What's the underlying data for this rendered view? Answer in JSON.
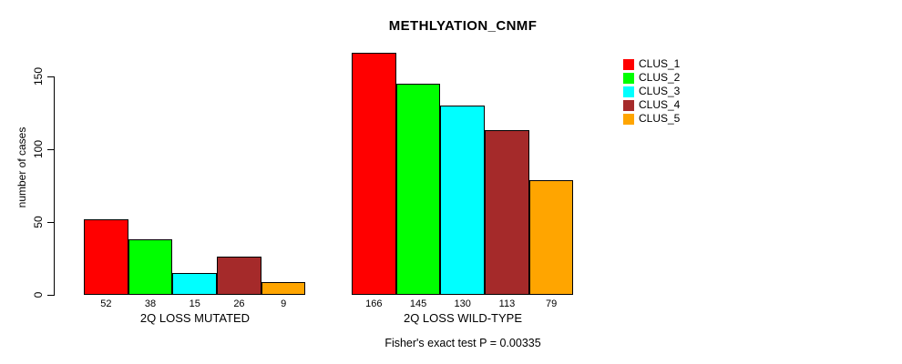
{
  "chart_data": {
    "type": "bar",
    "title": "METHLYATION_CNMF",
    "ylabel": "number of cases",
    "xlabel": "",
    "categories": [
      "2Q LOSS MUTATED",
      "2Q LOSS WILD-TYPE"
    ],
    "series": [
      {
        "name": "CLUS_1",
        "color": "#FF0000",
        "values": [
          52,
          166
        ]
      },
      {
        "name": "CLUS_2",
        "color": "#00FF00",
        "values": [
          38,
          145
        ]
      },
      {
        "name": "CLUS_3",
        "color": "#00FFFF",
        "values": [
          15,
          130
        ]
      },
      {
        "name": "CLUS_4",
        "color": "#A52A2A",
        "values": [
          26,
          113
        ]
      },
      {
        "name": "CLUS_5",
        "color": "#FFA500",
        "values": [
          9,
          79
        ]
      }
    ],
    "y_ticks": [
      0,
      50,
      100,
      150
    ],
    "ylim": [
      0,
      175
    ],
    "grid": false,
    "bar_value_labels_shown": true,
    "legend_position": "right",
    "annotation": "Fisher's exact test P = 0.00335",
    "axis_color": "#000000",
    "background_color": "#FFFFFF"
  }
}
